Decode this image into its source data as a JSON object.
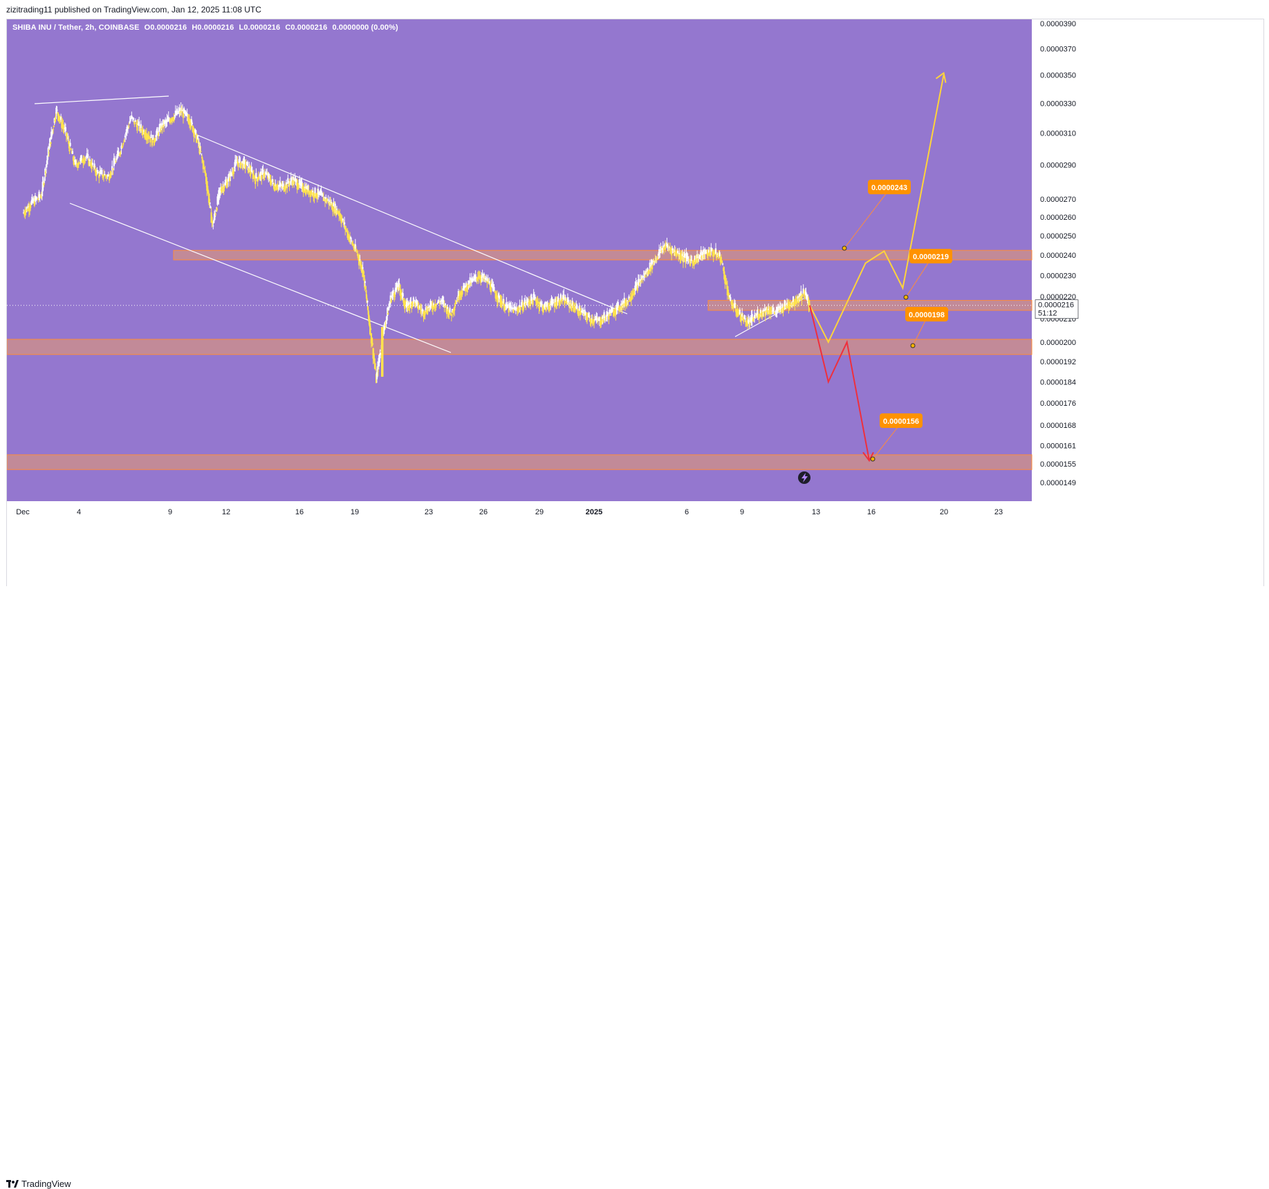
{
  "header": {
    "published_by": "zizitrading11 published on TradingView.com, Jan 12, 2025 11:08 UTC"
  },
  "legend": {
    "symbol": "SHIBA INU / Tether, 2h, COINBASE",
    "open": "O0.0000216",
    "high": "H0.0000216",
    "low": "L0.0000216",
    "close": "C0.0000216",
    "change": "0.0000000 (0.00%)"
  },
  "footer": {
    "brand": "TradingView"
  },
  "current_price": {
    "value": "0.0000216",
    "countdown": "51:12"
  },
  "colors": {
    "background": "#9477cf",
    "candle": "#ffe34d",
    "zone_fill": "#e79a6b",
    "zone_border": "#ff8c3a",
    "scenario_up": "#ffd43b",
    "scenario_down": "#ef2f3c",
    "callout_bg": "#ff9200",
    "trendline": "#ffffff"
  },
  "chart_data": {
    "type": "line",
    "title": "SHIBA INU / Tether, 2h, COINBASE",
    "x_ticks": [
      "Dec",
      "4",
      "9",
      "12",
      "16",
      "19",
      "23",
      "26",
      "29",
      "2025",
      "6",
      "9",
      "13",
      "16",
      "20",
      "23"
    ],
    "y_ticks": [
      "0.0000390",
      "0.0000370",
      "0.0000350",
      "0.0000330",
      "0.0000310",
      "0.0000290",
      "0.0000270",
      "0.0000260",
      "0.0000250",
      "0.0000240",
      "0.0000230",
      "0.0000220",
      "0.0000210",
      "0.0000200",
      "0.0000192",
      "0.0000184",
      "0.0000176",
      "0.0000168",
      "0.0000161",
      "0.0000155",
      "0.0000149"
    ],
    "log_scale": true,
    "series": [
      {
        "values_x_days": [
          0,
          0.5,
          1,
          1.4,
          1.8,
          2.3,
          2.8,
          3.4,
          4,
          4.6,
          5.2,
          5.8,
          6.4,
          7,
          7.5,
          8,
          8.5,
          9,
          9.4,
          9.8,
          10.2,
          10.6,
          11,
          11.5,
          12,
          12.5,
          13,
          13.5,
          14,
          14.5,
          15,
          15.5,
          16,
          16.5,
          17,
          17.5,
          18,
          18.3,
          18.6,
          19,
          19.4,
          19.8,
          20.2,
          20.6,
          21,
          21.5,
          22,
          22.5,
          23,
          23.5,
          24,
          24.5,
          25,
          25.5,
          26,
          26.5,
          27,
          27.5,
          28,
          28.5,
          29,
          29.5,
          30,
          30.5,
          31,
          31.5,
          32,
          32.5,
          33,
          33.5,
          34,
          34.5,
          35,
          35.5,
          36,
          36.5,
          37,
          37.5,
          38,
          38.5,
          39,
          39.5,
          40,
          40.5,
          41,
          41.5,
          42,
          42.3
        ],
        "values": [
          2.62e-05,
          2.68e-05,
          2.72e-05,
          3e-05,
          3.25e-05,
          3.1e-05,
          2.9e-05,
          2.95e-05,
          2.85e-05,
          2.83e-05,
          2.98e-05,
          3.2e-05,
          3.12e-05,
          3.05e-05,
          3.15e-05,
          3.2e-05,
          3.25e-05,
          3.18e-05,
          3.05e-05,
          2.85e-05,
          2.55e-05,
          2.75e-05,
          2.8e-05,
          2.92e-05,
          2.9e-05,
          2.82e-05,
          2.85e-05,
          2.78e-05,
          2.77e-05,
          2.81e-05,
          2.77e-05,
          2.74e-05,
          2.72e-05,
          2.68e-05,
          2.62e-05,
          2.5e-05,
          2.4e-05,
          2.32e-05,
          2.1e-05,
          1.85e-05,
          2.05e-05,
          2.2e-05,
          2.25e-05,
          2.15e-05,
          2.18e-05,
          2.13e-05,
          2.16e-05,
          2.18e-05,
          2.12e-05,
          2.22e-05,
          2.26e-05,
          2.3e-05,
          2.27e-05,
          2.2e-05,
          2.15e-05,
          2.14e-05,
          2.17e-05,
          2.19e-05,
          2.15e-05,
          2.17e-05,
          2.19e-05,
          2.16e-05,
          2.13e-05,
          2.1e-05,
          2.09e-05,
          2.12e-05,
          2.15e-05,
          2.18e-05,
          2.25e-05,
          2.31e-05,
          2.38e-05,
          2.45e-05,
          2.42e-05,
          2.39e-05,
          2.37e-05,
          2.4e-05,
          2.42e-05,
          2.39e-05,
          2.18e-05,
          2.12e-05,
          2.08e-05,
          2.12e-05,
          2.14e-05,
          2.13e-05,
          2.16e-05,
          2.18e-05,
          2.22e-05,
          2.16e-05
        ]
      }
    ],
    "zones": [
      {
        "low": 2.39e-05,
        "high": 2.41e-05
      },
      {
        "low": 2.15e-05,
        "high": 2.17e-05
      },
      {
        "low": 1.96e-05,
        "high": 2e-05
      },
      {
        "low": 1.54e-05,
        "high": 1.57e-05
      }
    ],
    "callouts": [
      "0.0000243",
      "0.0000219",
      "0.0000198",
      "0.0000156"
    ],
    "scenario_up_path": [
      [
        42.3,
        2.16e-05
      ],
      [
        43.3,
        2e-05
      ],
      [
        45.3,
        2.36e-05
      ],
      [
        46.3,
        2.42e-05
      ],
      [
        47.3,
        2.24e-05
      ],
      [
        49.5,
        3.5e-05
      ]
    ],
    "scenario_down_path": [
      [
        42.3,
        2.16e-05
      ],
      [
        43.3,
        1.84e-05
      ],
      [
        44.3,
        2e-05
      ],
      [
        45.5,
        1.56e-05
      ]
    ]
  }
}
